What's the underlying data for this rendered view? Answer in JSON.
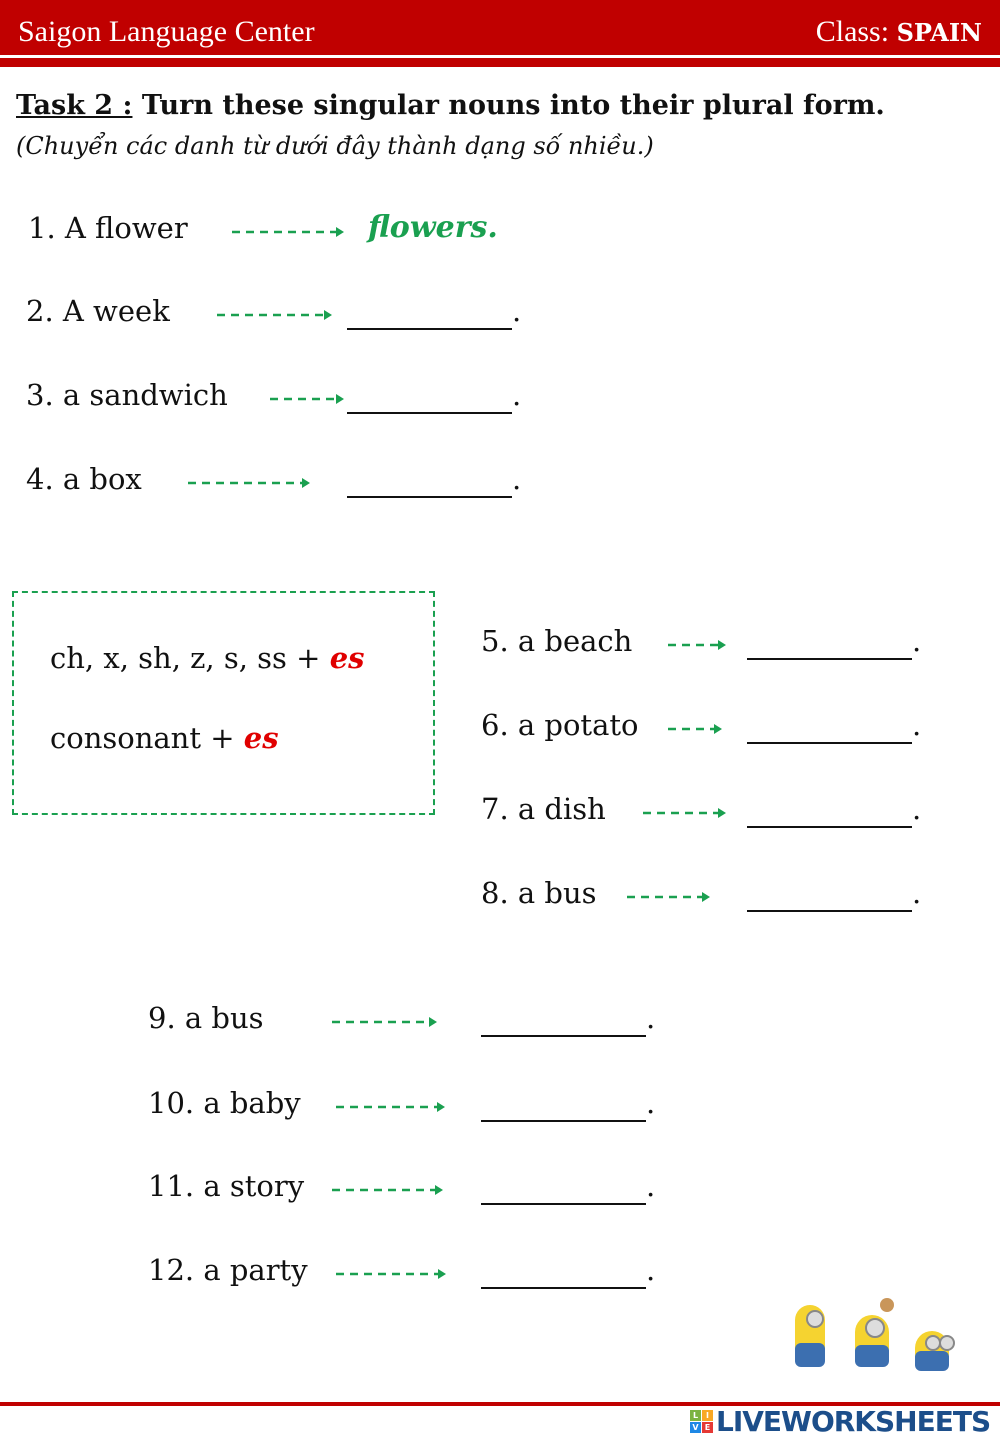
{
  "header": {
    "school": "Saigon Language Center",
    "class_label": "Class:",
    "class_name": "SPAIN"
  },
  "task": {
    "label": "Task 2 :",
    "instruction": "Turn these singular nouns into their plural form.",
    "translation": "(Chuyển các danh từ dưới đây thành dạng số nhiều.)"
  },
  "items": [
    {
      "text": "1. A flower",
      "answer": "flowers."
    },
    {
      "text": "2. A week",
      "answer": ""
    },
    {
      "text": "3. a sandwich",
      "answer": ""
    },
    {
      "text": "4. a box",
      "answer": ""
    },
    {
      "text": "5. a beach",
      "answer": ""
    },
    {
      "text": "6. a potato",
      "answer": ""
    },
    {
      "text": "7. a dish",
      "answer": ""
    },
    {
      "text": "8. a bus",
      "answer": ""
    },
    {
      "text": "9. a bus",
      "answer": ""
    },
    {
      "text": "10. a baby",
      "answer": ""
    },
    {
      "text": "11. a story",
      "answer": ""
    },
    {
      "text": "12. a party",
      "answer": ""
    }
  ],
  "period": ".",
  "rules": [
    {
      "text": "ch, x, sh, z, s, ss +",
      "suffix": "es"
    },
    {
      "text": "consonant +",
      "suffix": "es"
    }
  ],
  "footer": {
    "logo_text": "LIVEWORKSHEETS",
    "logo_letters": [
      "L",
      "I",
      "V",
      "E"
    ]
  },
  "colors": {
    "brand_red": "#c00000",
    "arrow_green": "#1aa050",
    "suffix_red": "#e00000",
    "logo_blue": "#1c4e8a"
  },
  "icons": {
    "arrow": "dashed-right-arrow",
    "decoration": "minions-illustration"
  }
}
